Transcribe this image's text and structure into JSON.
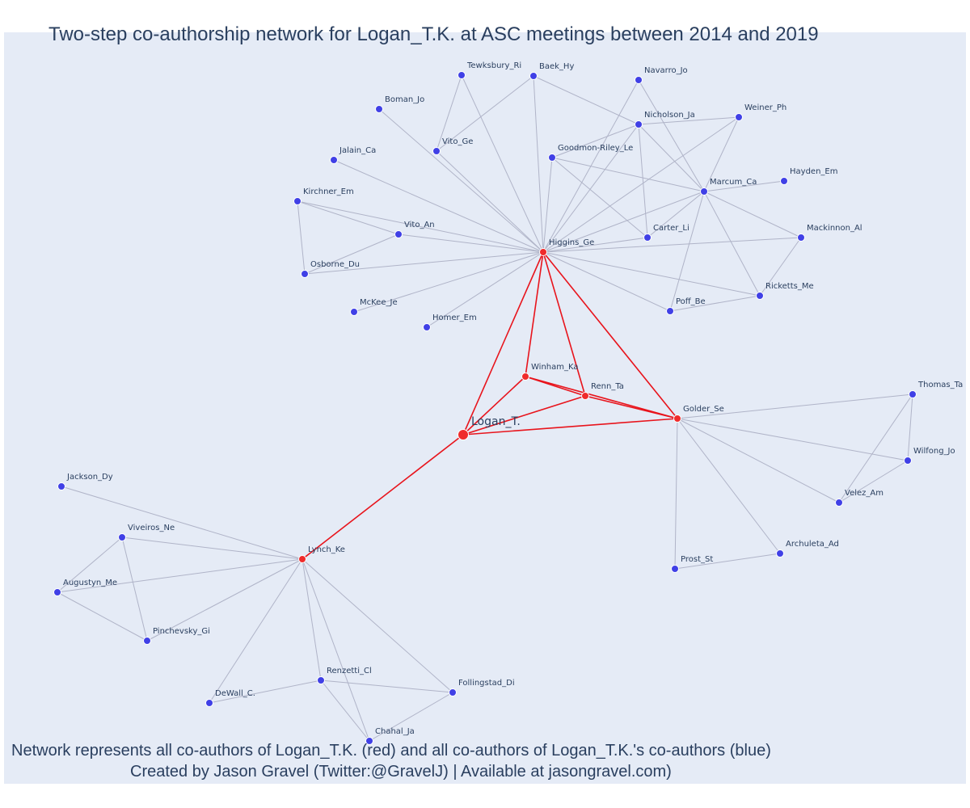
{
  "title": "Two-step co-authorship network for Logan_T.K. at ASC meetings between 2014 and 2019",
  "caption": {
    "line1": "Network represents all co-authors of Logan_T.K. (red) and all co-authors of Logan_T.K.'s co-authors (blue)",
    "line2": "Created by Jason Gravel (Twitter:@GravelJ) | Available at jasongravel.com)"
  },
  "colors": {
    "background": "#e5ebf6",
    "first_degree_node": "#ef2b2b",
    "second_degree_node": "#4040e6",
    "first_degree_edge": "#e8141c",
    "second_degree_edge": "#b0b4c8",
    "text": "#2a3f5f"
  },
  "chart_data": {
    "type": "network",
    "focal_author": "Logan_T.",
    "nodes": [
      {
        "id": "Logan_T.",
        "group": "focal"
      },
      {
        "id": "Higgins_Ge",
        "group": "coauthor"
      },
      {
        "id": "Winham_Ka",
        "group": "coauthor"
      },
      {
        "id": "Renn_Ta",
        "group": "coauthor"
      },
      {
        "id": "Golder_Se",
        "group": "coauthor"
      },
      {
        "id": "Lynch_Ke",
        "group": "coauthor"
      },
      {
        "id": "Tewksbury_Ri",
        "group": "second"
      },
      {
        "id": "Baek_Hy",
        "group": "second"
      },
      {
        "id": "Navarro_Jo",
        "group": "second"
      },
      {
        "id": "Boman_Jo",
        "group": "second"
      },
      {
        "id": "Nicholson_Ja",
        "group": "second"
      },
      {
        "id": "Weiner_Ph",
        "group": "second"
      },
      {
        "id": "Vito_Ge",
        "group": "second"
      },
      {
        "id": "Goodmon-Riley_Le",
        "group": "second"
      },
      {
        "id": "Jalain_Ca",
        "group": "second"
      },
      {
        "id": "Hayden_Em",
        "group": "second"
      },
      {
        "id": "Marcum_Ca",
        "group": "second"
      },
      {
        "id": "Kirchner_Em",
        "group": "second"
      },
      {
        "id": "Vito_An",
        "group": "second"
      },
      {
        "id": "Carter_Li",
        "group": "second"
      },
      {
        "id": "Mackinnon_Al",
        "group": "second"
      },
      {
        "id": "Osborne_Du",
        "group": "second"
      },
      {
        "id": "Ricketts_Me",
        "group": "second"
      },
      {
        "id": "McKee_Je",
        "group": "second"
      },
      {
        "id": "Poff_Be",
        "group": "second"
      },
      {
        "id": "Homer_Em",
        "group": "second"
      },
      {
        "id": "Thomas_Ta",
        "group": "second"
      },
      {
        "id": "Wilfong_Jo",
        "group": "second"
      },
      {
        "id": "Velez_Am",
        "group": "second"
      },
      {
        "id": "Archuleta_Ad",
        "group": "second"
      },
      {
        "id": "Prost_St",
        "group": "second"
      },
      {
        "id": "Jackson_Dy",
        "group": "second"
      },
      {
        "id": "Viveiros_Ne",
        "group": "second"
      },
      {
        "id": "Augustyn_Me",
        "group": "second"
      },
      {
        "id": "Pinchevsky_Gi",
        "group": "second"
      },
      {
        "id": "Renzetti_Cl",
        "group": "second"
      },
      {
        "id": "Follingstad_Di",
        "group": "second"
      },
      {
        "id": "DeWall_C.",
        "group": "second"
      },
      {
        "id": "Chahal_Ja",
        "group": "second"
      }
    ],
    "edges": [
      [
        "Logan_T.",
        "Higgins_Ge"
      ],
      [
        "Logan_T.",
        "Winham_Ka"
      ],
      [
        "Logan_T.",
        "Renn_Ta"
      ],
      [
        "Logan_T.",
        "Golder_Se"
      ],
      [
        "Logan_T.",
        "Lynch_Ke"
      ],
      [
        "Higgins_Ge",
        "Winham_Ka"
      ],
      [
        "Higgins_Ge",
        "Renn_Ta"
      ],
      [
        "Higgins_Ge",
        "Golder_Se"
      ],
      [
        "Winham_Ka",
        "Renn_Ta"
      ],
      [
        "Winham_Ka",
        "Golder_Se"
      ],
      [
        "Renn_Ta",
        "Golder_Se"
      ],
      [
        "Higgins_Ge",
        "Tewksbury_Ri"
      ],
      [
        "Higgins_Ge",
        "Baek_Hy"
      ],
      [
        "Higgins_Ge",
        "Navarro_Jo"
      ],
      [
        "Higgins_Ge",
        "Boman_Jo"
      ],
      [
        "Higgins_Ge",
        "Nicholson_Ja"
      ],
      [
        "Higgins_Ge",
        "Weiner_Ph"
      ],
      [
        "Higgins_Ge",
        "Vito_Ge"
      ],
      [
        "Higgins_Ge",
        "Goodmon-Riley_Le"
      ],
      [
        "Higgins_Ge",
        "Jalain_Ca"
      ],
      [
        "Higgins_Ge",
        "Marcum_Ca"
      ],
      [
        "Higgins_Ge",
        "Kirchner_Em"
      ],
      [
        "Higgins_Ge",
        "Vito_An"
      ],
      [
        "Higgins_Ge",
        "Carter_Li"
      ],
      [
        "Higgins_Ge",
        "Mackinnon_Al"
      ],
      [
        "Higgins_Ge",
        "Osborne_Du"
      ],
      [
        "Higgins_Ge",
        "Ricketts_Me"
      ],
      [
        "Higgins_Ge",
        "McKee_Je"
      ],
      [
        "Higgins_Ge",
        "Poff_Be"
      ],
      [
        "Higgins_Ge",
        "Homer_Em"
      ],
      [
        "Tewksbury_Ri",
        "Vito_Ge"
      ],
      [
        "Baek_Hy",
        "Vito_Ge"
      ],
      [
        "Baek_Hy",
        "Nicholson_Ja"
      ],
      [
        "Navarro_Jo",
        "Marcum_Ca"
      ],
      [
        "Nicholson_Ja",
        "Weiner_Ph"
      ],
      [
        "Nicholson_Ja",
        "Goodmon-Riley_Le"
      ],
      [
        "Nicholson_Ja",
        "Marcum_Ca"
      ],
      [
        "Nicholson_Ja",
        "Carter_Li"
      ],
      [
        "Weiner_Ph",
        "Marcum_Ca"
      ],
      [
        "Goodmon-Riley_Le",
        "Marcum_Ca"
      ],
      [
        "Goodmon-Riley_Le",
        "Carter_Li"
      ],
      [
        "Hayden_Em",
        "Marcum_Ca"
      ],
      [
        "Marcum_Ca",
        "Mackinnon_Al"
      ],
      [
        "Marcum_Ca",
        "Ricketts_Me"
      ],
      [
        "Marcum_Ca",
        "Poff_Be"
      ],
      [
        "Marcum_Ca",
        "Carter_Li"
      ],
      [
        "Mackinnon_Al",
        "Ricketts_Me"
      ],
      [
        "Poff_Be",
        "Ricketts_Me"
      ],
      [
        "Kirchner_Em",
        "Vito_An"
      ],
      [
        "Kirchner_Em",
        "Osborne_Du"
      ],
      [
        "Vito_An",
        "Osborne_Du"
      ],
      [
        "Golder_Se",
        "Thomas_Ta"
      ],
      [
        "Golder_Se",
        "Wilfong_Jo"
      ],
      [
        "Golder_Se",
        "Velez_Am"
      ],
      [
        "Golder_Se",
        "Archuleta_Ad"
      ],
      [
        "Golder_Se",
        "Prost_St"
      ],
      [
        "Thomas_Ta",
        "Wilfong_Jo"
      ],
      [
        "Thomas_Ta",
        "Velez_Am"
      ],
      [
        "Wilfong_Jo",
        "Velez_Am"
      ],
      [
        "Archuleta_Ad",
        "Prost_St"
      ],
      [
        "Lynch_Ke",
        "Jackson_Dy"
      ],
      [
        "Lynch_Ke",
        "Viveiros_Ne"
      ],
      [
        "Lynch_Ke",
        "Augustyn_Me"
      ],
      [
        "Lynch_Ke",
        "Pinchevsky_Gi"
      ],
      [
        "Lynch_Ke",
        "Renzetti_Cl"
      ],
      [
        "Lynch_Ke",
        "Follingstad_Di"
      ],
      [
        "Lynch_Ke",
        "DeWall_C."
      ],
      [
        "Lynch_Ke",
        "Chahal_Ja"
      ],
      [
        "Viveiros_Ne",
        "Augustyn_Me"
      ],
      [
        "Viveiros_Ne",
        "Pinchevsky_Gi"
      ],
      [
        "Augustyn_Me",
        "Pinchevsky_Gi"
      ],
      [
        "Renzetti_Cl",
        "Follingstad_Di"
      ],
      [
        "Renzetti_Cl",
        "DeWall_C."
      ],
      [
        "Renzetti_Cl",
        "Chahal_Ja"
      ],
      [
        "Follingstad_Di",
        "Chahal_Ja"
      ]
    ]
  }
}
